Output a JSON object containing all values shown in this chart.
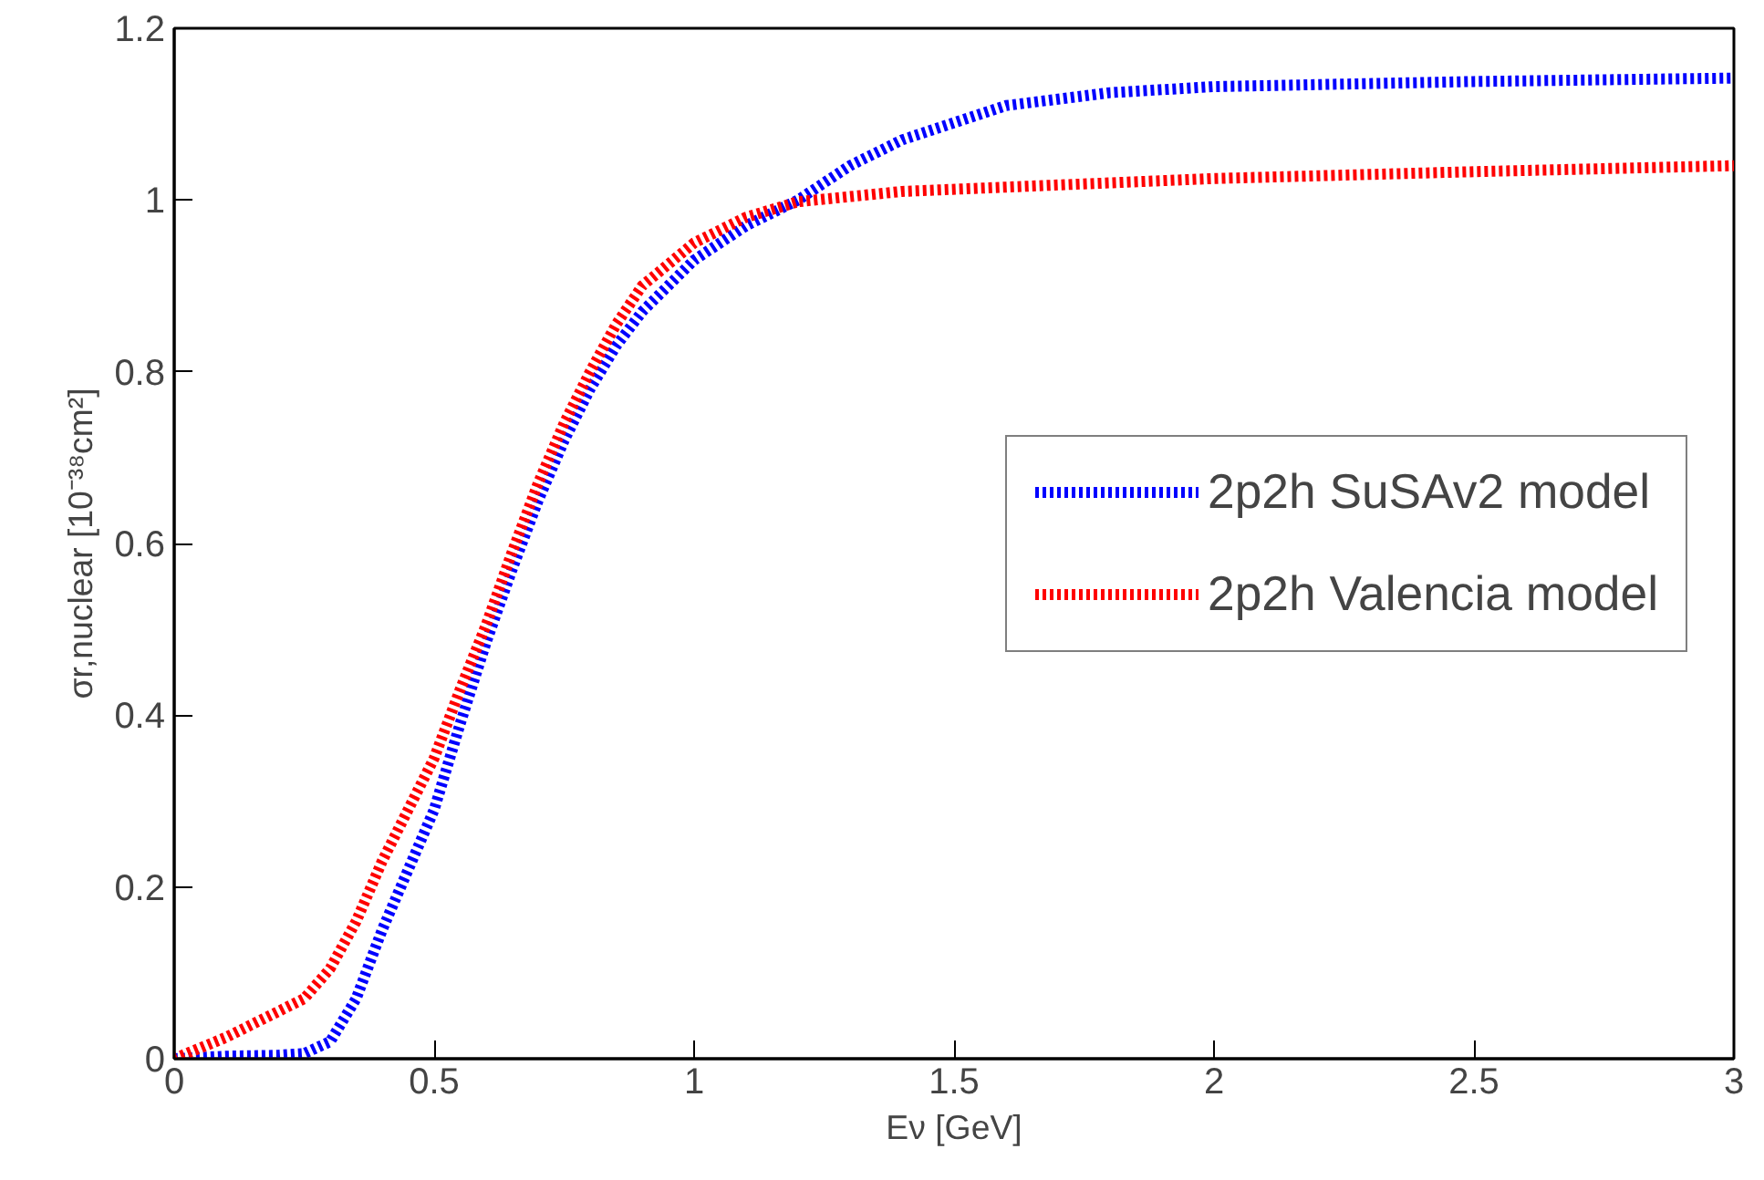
{
  "chart_data": {
    "type": "line",
    "xlabel": "Eν [GeV]",
    "ylabel": "σr,nuclear [10⁻³⁸cm²]",
    "xlim": [
      0,
      3
    ],
    "ylim": [
      0,
      1.2
    ],
    "xticks": [
      0,
      0.5,
      1,
      1.5,
      2,
      2.5,
      3
    ],
    "yticks": [
      0,
      0.2,
      0.4,
      0.6,
      0.8,
      1,
      1.2
    ],
    "grid": false,
    "legend": "right",
    "marker": "none",
    "line_style": "dotted",
    "series": [
      {
        "name": "2p2h SuSAv2 model",
        "color": "#0000ff",
        "x": [
          0,
          0.1,
          0.2,
          0.25,
          0.3,
          0.35,
          0.4,
          0.45,
          0.5,
          0.55,
          0.6,
          0.65,
          0.7,
          0.75,
          0.8,
          0.85,
          0.9,
          1.0,
          1.1,
          1.2,
          1.3,
          1.4,
          1.5,
          1.6,
          1.8,
          2.0,
          2.5,
          3.0
        ],
        "values": [
          0,
          0.003,
          0.004,
          0.006,
          0.02,
          0.07,
          0.15,
          0.22,
          0.29,
          0.39,
          0.485,
          0.57,
          0.65,
          0.72,
          0.78,
          0.83,
          0.87,
          0.93,
          0.97,
          1.0,
          1.04,
          1.07,
          1.09,
          1.11,
          1.125,
          1.132,
          1.138,
          1.142
        ]
      },
      {
        "name": "2p2h Valencia model",
        "color": "#ff0000",
        "x": [
          0,
          0.1,
          0.2,
          0.25,
          0.3,
          0.35,
          0.4,
          0.45,
          0.5,
          0.55,
          0.6,
          0.65,
          0.7,
          0.75,
          0.8,
          0.85,
          0.9,
          1.0,
          1.1,
          1.2,
          1.4,
          1.6,
          2.0,
          2.5,
          3.0
        ],
        "values": [
          0,
          0.025,
          0.055,
          0.07,
          0.105,
          0.16,
          0.23,
          0.29,
          0.35,
          0.43,
          0.505,
          0.59,
          0.67,
          0.74,
          0.8,
          0.855,
          0.9,
          0.95,
          0.98,
          0.998,
          1.01,
          1.015,
          1.025,
          1.033,
          1.04
        ]
      }
    ]
  }
}
